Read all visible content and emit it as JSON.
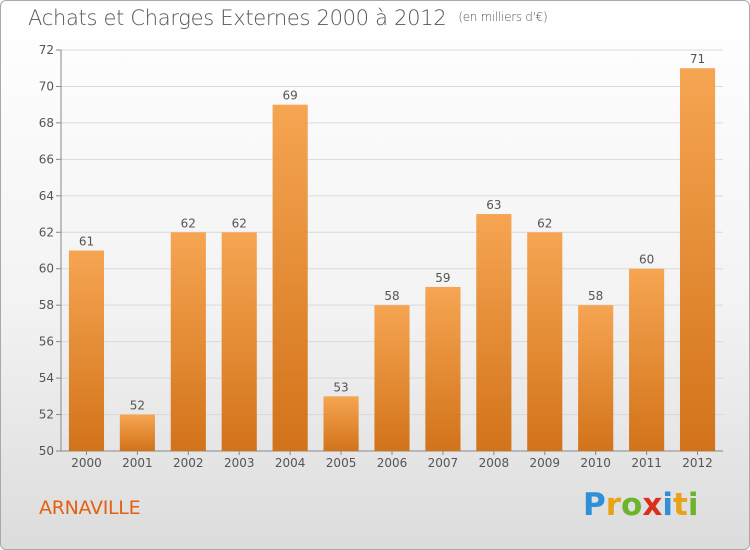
{
  "chart_title": "Achats et Charges Externes 2000 à 2012",
  "chart_subtitle": "(en milliers d'€)",
  "location": "ARNAVILLE",
  "logo": {
    "letters": [
      "P",
      "r",
      "o",
      "x",
      "i",
      "t",
      "i"
    ],
    "colors": [
      "#2f8fd8",
      "#e8a21a",
      "#6db42c",
      "#d9301c",
      "#2f8fd8",
      "#e8a21a",
      "#6db42c"
    ]
  },
  "colors": {
    "bar_light": "#f6a552",
    "bar_dark": "#d2731a",
    "text": "#555555"
  },
  "chart_data": {
    "type": "bar",
    "title": "Achats et Charges Externes 2000 à 2012",
    "subtitle": "(en milliers d'€)",
    "categories": [
      "2000",
      "2001",
      "2002",
      "2003",
      "2004",
      "2005",
      "2006",
      "2007",
      "2008",
      "2009",
      "2010",
      "2011",
      "2012"
    ],
    "values": [
      61,
      52,
      62,
      62,
      69,
      53,
      58,
      59,
      63,
      62,
      58,
      60,
      71
    ],
    "ylim": [
      50,
      72
    ],
    "yticks": [
      50,
      52,
      54,
      56,
      58,
      60,
      62,
      64,
      66,
      68,
      70,
      72
    ],
    "grid": true,
    "xlabel": "",
    "ylabel": ""
  }
}
